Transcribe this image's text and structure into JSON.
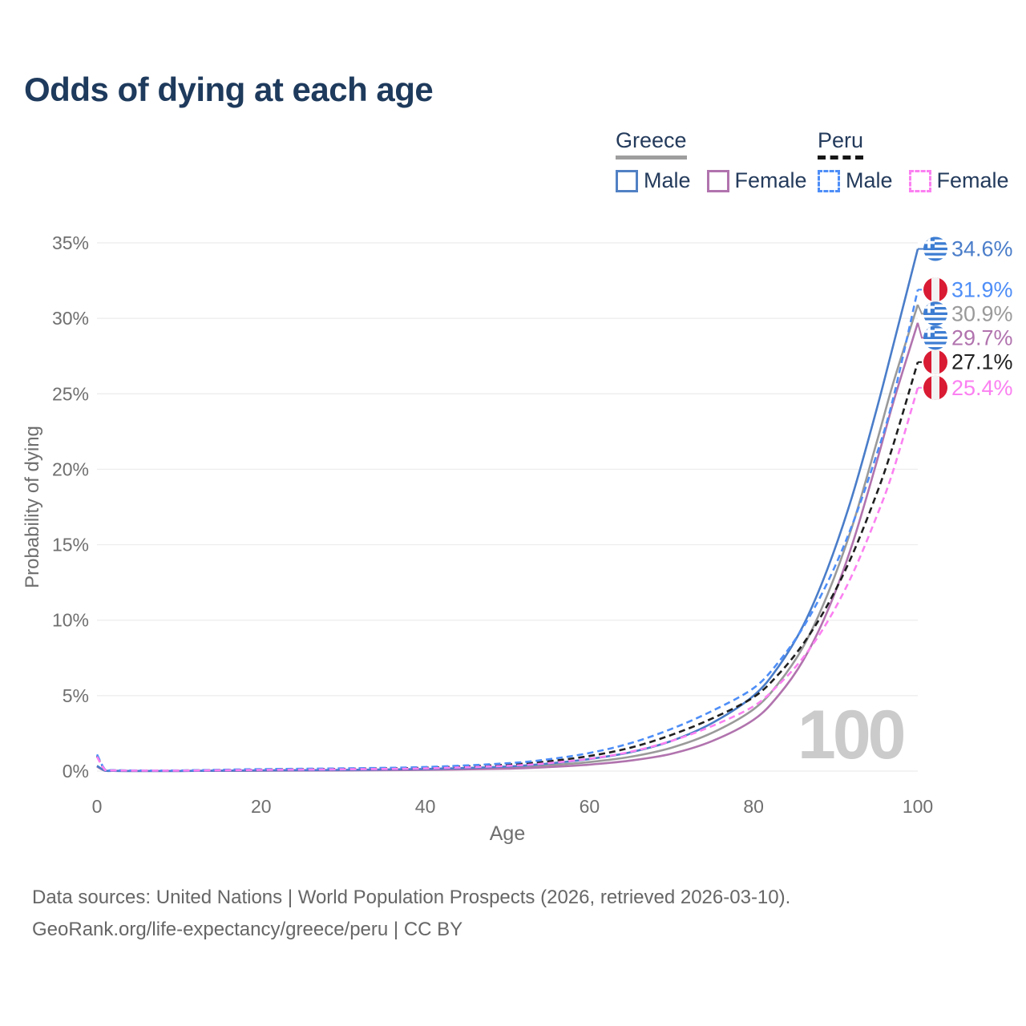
{
  "title": "Odds of dying at each age",
  "watermark": "100",
  "legend": {
    "groups": [
      {
        "country": "Greece",
        "line_style": "solid",
        "line_color": "#9e9e9e",
        "items": [
          {
            "label": "Male",
            "color": "#5181c4"
          },
          {
            "label": "Female",
            "color": "#b173ae"
          }
        ]
      },
      {
        "country": "Peru",
        "line_style": "dashed",
        "line_color": "#161616",
        "items": [
          {
            "label": "Male",
            "color": "#4e8ef7"
          },
          {
            "label": "Female",
            "color": "#fb80f1"
          }
        ]
      }
    ]
  },
  "footer": {
    "line1": "Data sources: United Nations | World Population Prospects (2026, retrieved 2026-03-10).",
    "line2": "GeoRank.org/life-expectancy/greece/peru | CC BY"
  },
  "chart_data": {
    "type": "line",
    "title": "Odds of dying at each age",
    "xlabel": "Age",
    "ylabel": "Probability of dying",
    "xlim": [
      0,
      100
    ],
    "ylim": [
      0,
      35
    ],
    "x_ticks": [
      0,
      20,
      40,
      60,
      80,
      100
    ],
    "y_ticks": [
      "0%",
      "5%",
      "10%",
      "15%",
      "20%",
      "25%",
      "30%",
      "35%"
    ],
    "grid": "horizontal",
    "legend_position": "top-right",
    "ages": [
      0,
      1,
      2,
      4,
      10,
      20,
      30,
      40,
      50,
      55,
      60,
      65,
      70,
      75,
      80,
      83,
      86,
      89,
      92,
      95,
      97,
      100
    ],
    "series": [
      {
        "name": "Greece Male",
        "slug": "greece-male",
        "country": "Greece",
        "flag": "greece",
        "dash": false,
        "color": "#4a7dc9",
        "end_value": 34.6,
        "end_label": "34.6%",
        "values": [
          0.35,
          0.03,
          0.02,
          0.012,
          0.012,
          0.05,
          0.08,
          0.14,
          0.3,
          0.5,
          0.8,
          1.25,
          2.0,
          3.2,
          5.0,
          6.9,
          9.6,
          13.4,
          18.2,
          24.0,
          28.2,
          34.6
        ]
      },
      {
        "name": "Peru Male",
        "slug": "peru-male",
        "country": "Peru",
        "flag": "peru",
        "dash": true,
        "color": "#4e8ef7",
        "end_value": 31.9,
        "end_label": "31.9%",
        "values": [
          1.1,
          0.09,
          0.06,
          0.045,
          0.045,
          0.13,
          0.18,
          0.27,
          0.52,
          0.78,
          1.2,
          1.85,
          2.8,
          4.0,
          5.5,
          7.2,
          9.5,
          12.5,
          16.3,
          21.0,
          24.7,
          31.9
        ]
      },
      {
        "name": "Greece Both sexes",
        "slug": "greece-both",
        "country": "Greece",
        "flag": "greece",
        "dash": false,
        "color": "#9a9a9a",
        "end_value": 30.9,
        "end_label": "30.9%",
        "values": [
          0.32,
          0.025,
          0.016,
          0.01,
          0.01,
          0.04,
          0.06,
          0.11,
          0.23,
          0.38,
          0.6,
          0.95,
          1.55,
          2.55,
          4.1,
          5.8,
          8.2,
          11.7,
          16.2,
          21.8,
          25.7,
          30.9
        ]
      },
      {
        "name": "Greece Female",
        "slug": "greece-female",
        "country": "Greece",
        "flag": "greece",
        "dash": false,
        "color": "#b173ae",
        "end_value": 29.7,
        "end_label": "29.7%",
        "values": [
          0.3,
          0.02,
          0.013,
          0.008,
          0.008,
          0.025,
          0.045,
          0.08,
          0.16,
          0.27,
          0.43,
          0.7,
          1.15,
          2.0,
          3.4,
          5.0,
          7.3,
          10.6,
          15.0,
          20.5,
          24.4,
          29.7
        ]
      },
      {
        "name": "Peru Both sexes",
        "slug": "peru-both",
        "country": "Peru",
        "flag": "peru",
        "dash": true,
        "color": "#1f1f1f",
        "end_value": 27.1,
        "end_label": "27.1%",
        "values": [
          1.0,
          0.08,
          0.05,
          0.038,
          0.038,
          0.1,
          0.15,
          0.22,
          0.43,
          0.65,
          1.0,
          1.55,
          2.4,
          3.5,
          4.9,
          6.4,
          8.4,
          11.0,
          14.3,
          18.4,
          21.6,
          27.1
        ]
      },
      {
        "name": "Peru Female",
        "slug": "peru-female",
        "country": "Peru",
        "flag": "peru",
        "dash": true,
        "color": "#fb80f1",
        "end_value": 25.4,
        "end_label": "25.4%",
        "values": [
          0.95,
          0.07,
          0.045,
          0.032,
          0.032,
          0.08,
          0.12,
          0.18,
          0.35,
          0.53,
          0.82,
          1.28,
          2.0,
          3.0,
          4.3,
          5.7,
          7.5,
          9.9,
          13.0,
          16.9,
          19.9,
          25.4
        ]
      }
    ]
  }
}
